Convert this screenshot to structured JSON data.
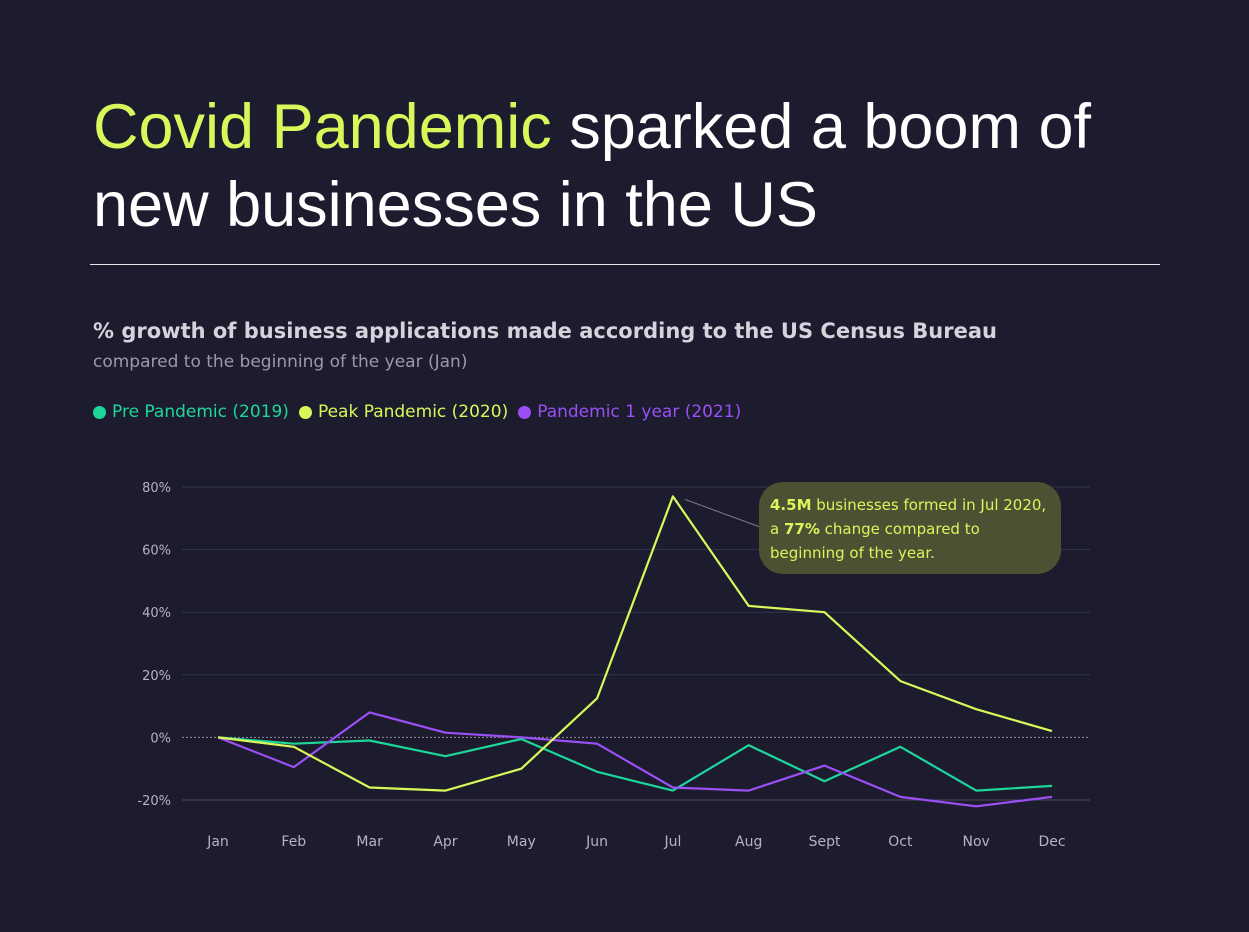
{
  "headline": {
    "highlight": "Covid Pandemic",
    "rest": " sparked a boom of new businesses in the US"
  },
  "colors": {
    "background": "#1c1c2e",
    "accent": "#d9f75a",
    "pre": "#1fd69a",
    "peak": "#d9f75a",
    "post": "#9b4ff5"
  },
  "chart_data": {
    "type": "line",
    "title": "% growth of business applications made according to the US Census Bureau",
    "subtitle": "compared to the beginning of the year (Jan)",
    "categories": [
      "Jan",
      "Feb",
      "Mar",
      "Apr",
      "May",
      "Jun",
      "Jul",
      "Aug",
      "Sept",
      "Oct",
      "Nov",
      "Dec"
    ],
    "series": [
      {
        "name": "Pre Pandemic (2019)",
        "color": "#1fd69a",
        "values": [
          0,
          -2,
          -1,
          -6,
          -0.5,
          -11,
          -17,
          -2.5,
          -14,
          -3,
          -17,
          -15.5
        ]
      },
      {
        "name": "Peak Pandemic (2020)",
        "color": "#d9f75a",
        "values": [
          0,
          -3,
          -16,
          -17,
          -10,
          12.5,
          77,
          42,
          40,
          18,
          9,
          2
        ]
      },
      {
        "name": "Pandemic 1 year (2021)",
        "color": "#9b4ff5",
        "values": [
          0,
          -9.5,
          8,
          1.5,
          0,
          -2,
          -16,
          -17,
          -9,
          -19,
          -22,
          -19
        ]
      }
    ],
    "ylim": [
      -20,
      80
    ],
    "yticks": [
      -20,
      0,
      20,
      40,
      60,
      80
    ],
    "ytick_labels": [
      "-20%",
      "0%",
      "20%",
      "40%",
      "60%",
      "80%"
    ],
    "grid": true,
    "legend": "top-left",
    "annotation": {
      "series": "Peak Pandemic (2020)",
      "category": "Jul",
      "value_bold": "4.5M",
      "text1": " businesses formed in Jul 2020,",
      "text2_pre": "a ",
      "pct_bold": "77%",
      "text2_post": " change compared to",
      "text3": "beginning of the year."
    }
  }
}
